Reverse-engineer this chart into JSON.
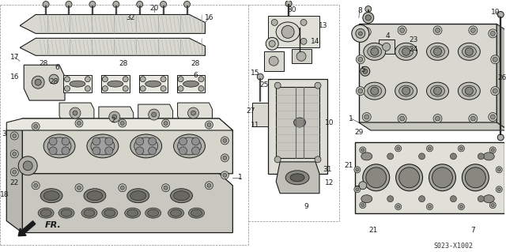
{
  "bg_color": "#f5f5f0",
  "diagram_code": "S023-X1002",
  "fr_label": "FR.",
  "line_color": "#1a1a1a",
  "label_fontsize": 6.5,
  "diagram_code_fontsize": 6,
  "fr_fontsize": 8,
  "gray_light": "#d8d8d0",
  "gray_mid": "#b0b0a8",
  "gray_dark": "#888880",
  "gray_darker": "#606058"
}
